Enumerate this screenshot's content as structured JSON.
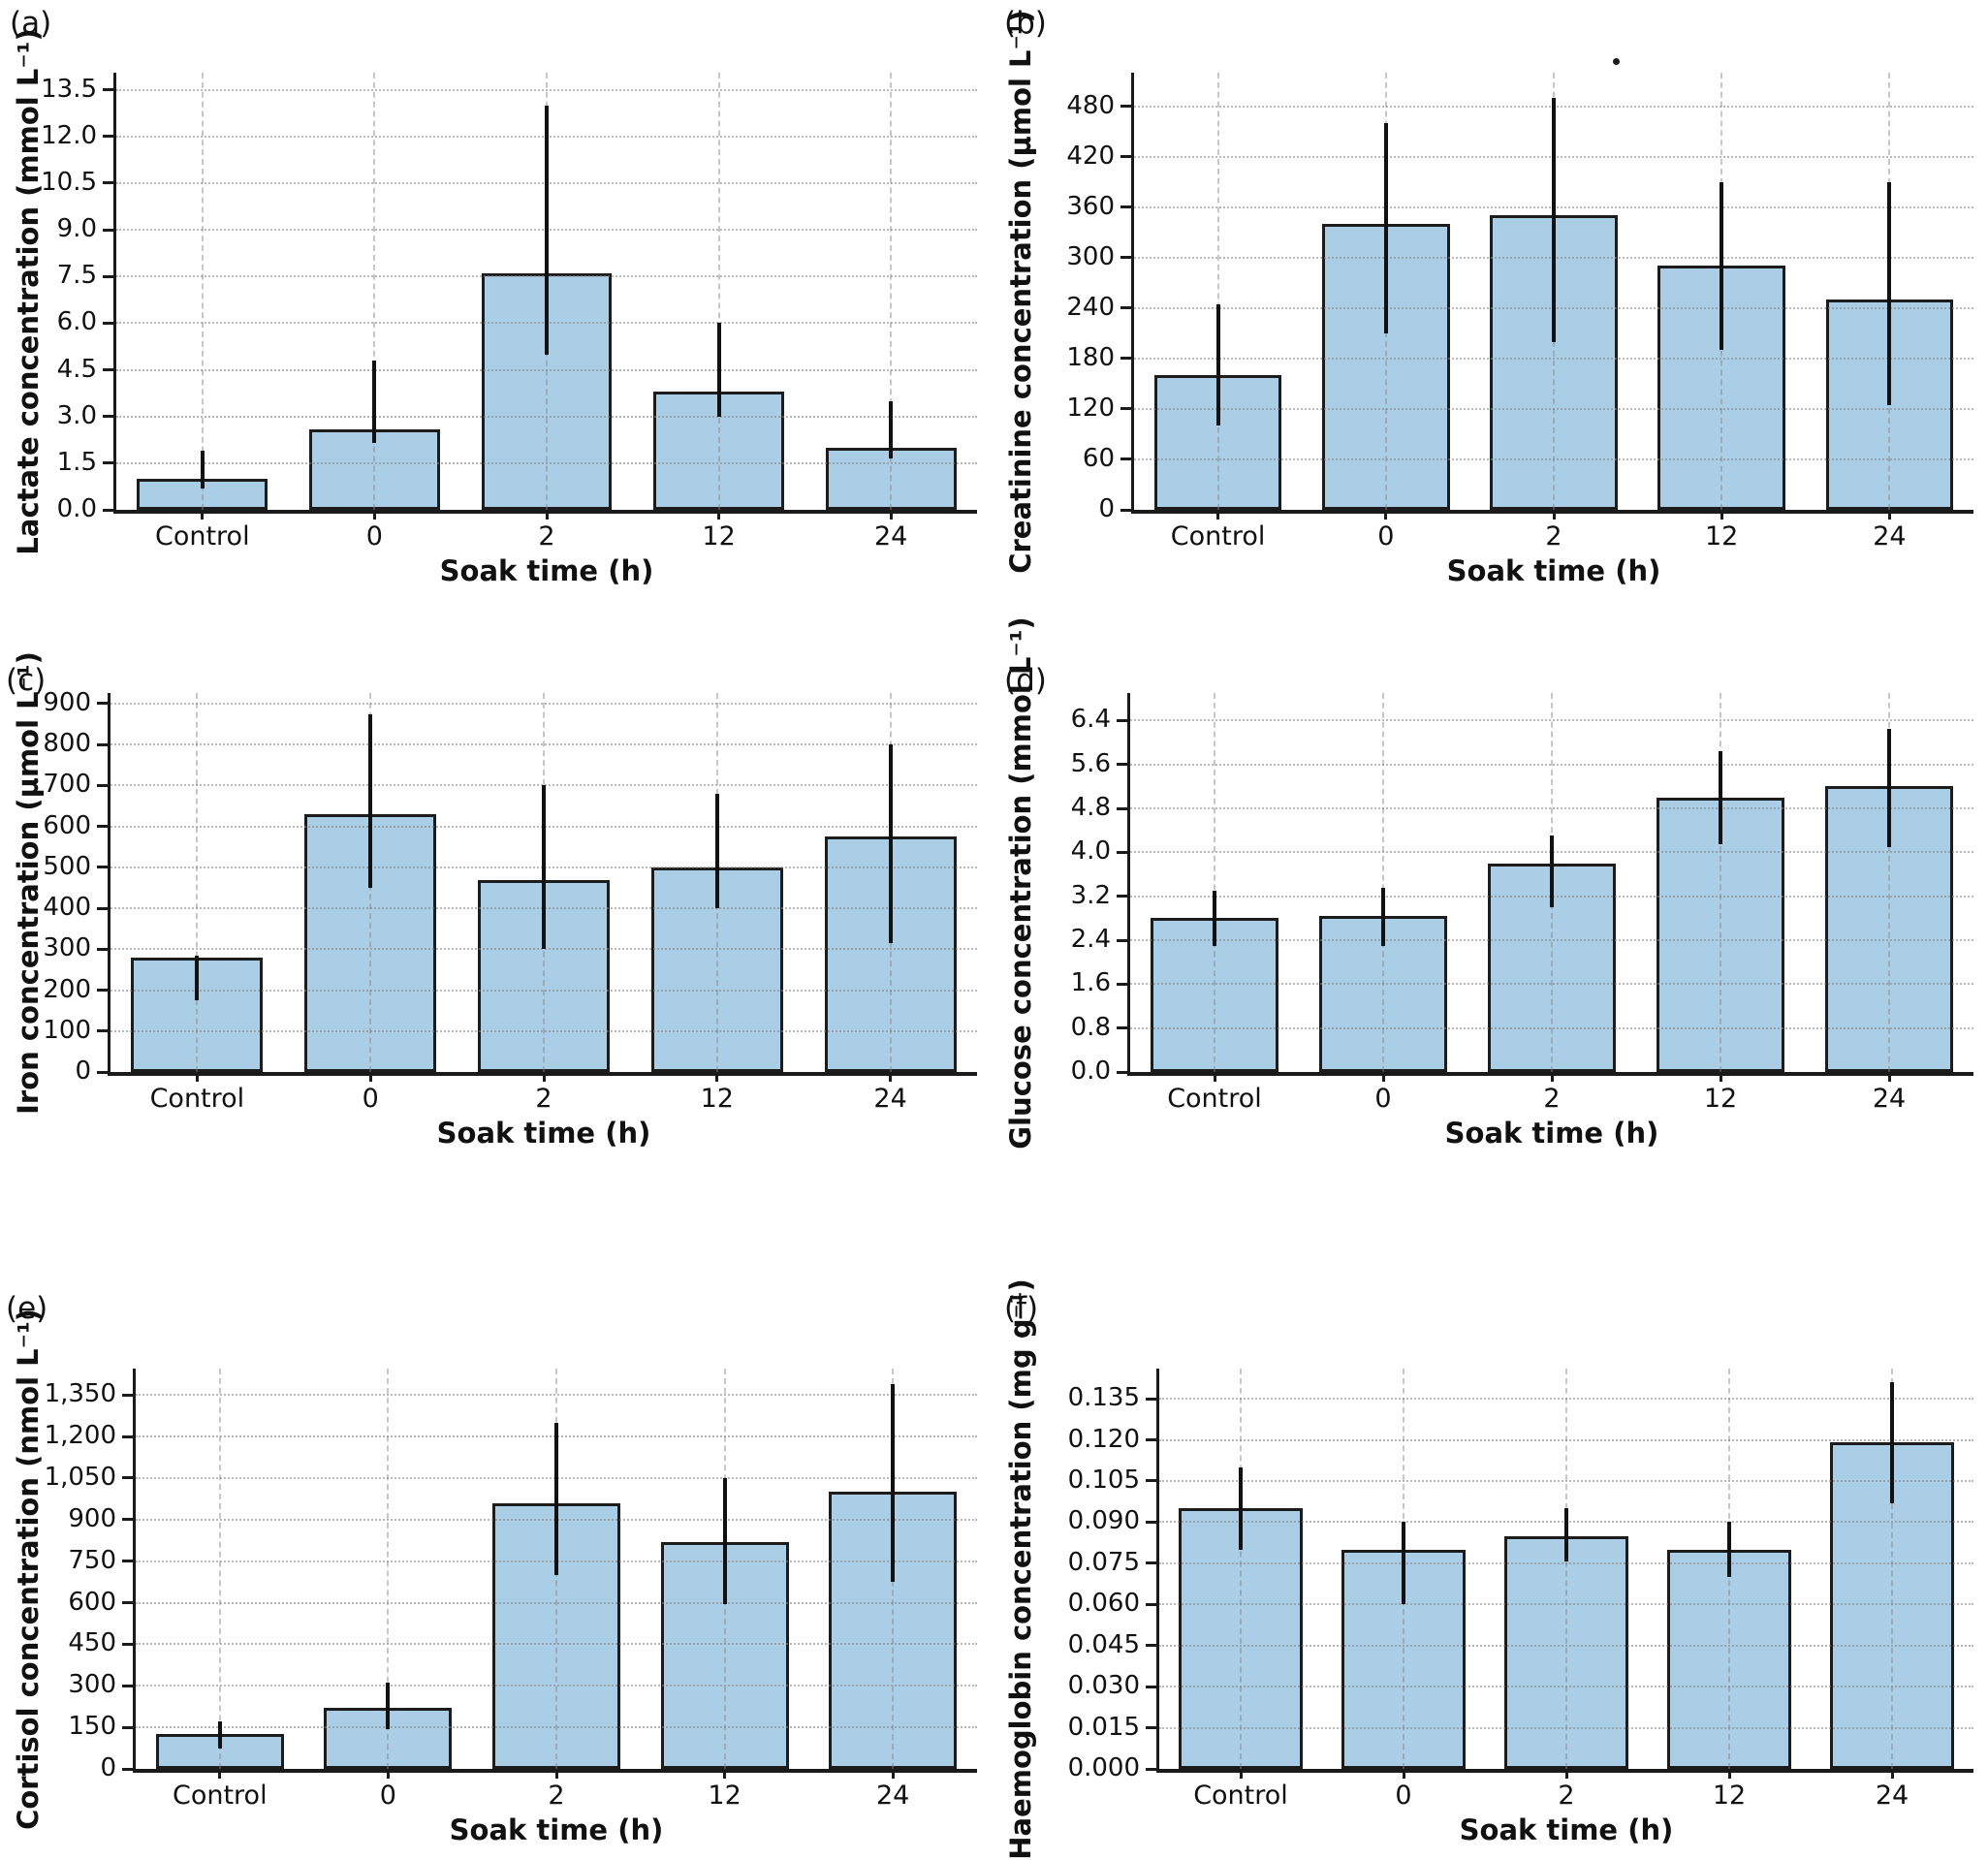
{
  "figure": {
    "background": "#ffffff",
    "bar_fill": "#a9cee5",
    "bar_edge": "#1c1c1c",
    "error_color": "#111111",
    "grid_color": "#c4c4c4",
    "axis_color": "#1a1a1a"
  },
  "chart_data": [
    {
      "type": "bar",
      "letter": "(a)",
      "ylabel": "Lactate concentration (mmol L⁻¹)",
      "xlabel": "Soak time (h)",
      "categories": [
        "Control",
        "0",
        "2",
        "12",
        "24"
      ],
      "values": [
        1.0,
        2.6,
        7.6,
        3.8,
        2.0
      ],
      "errors_low": [
        0.7,
        2.15,
        5.0,
        3.0,
        1.65
      ],
      "errors_high": [
        1.9,
        4.8,
        13.0,
        6.0,
        3.5
      ],
      "ylim": [
        0,
        14.05
      ],
      "ytick_values": [
        0,
        1.5,
        3.0,
        4.5,
        6.0,
        7.5,
        9.0,
        10.5,
        12.0,
        13.5
      ],
      "ytick_labels": [
        "0.0",
        "1.5",
        "3.0",
        "4.5",
        "6.0",
        "7.5",
        "9.0",
        "10.5",
        "12.0",
        "13.5"
      ],
      "grid": true,
      "legend": null
    },
    {
      "type": "bar",
      "letter": "(b)",
      "ylabel": "Creatinine concentration (µmol L⁻¹)",
      "xlabel": "Soak time (h)",
      "categories": [
        "Control",
        "0",
        "2",
        "12",
        "24"
      ],
      "values": [
        160,
        340,
        350,
        290,
        250
      ],
      "errors_low": [
        100,
        210,
        200,
        190,
        125
      ],
      "errors_high": [
        245,
        460,
        490,
        390,
        390
      ],
      "ylim": [
        0,
        520
      ],
      "ytick_values": [
        0,
        60,
        120,
        180,
        240,
        300,
        360,
        420,
        480
      ],
      "ytick_labels": [
        "0",
        "60",
        "120",
        "180",
        "240",
        "300",
        "360",
        "420",
        "480"
      ],
      "grid": true,
      "legend": null,
      "stray_dot": true
    },
    {
      "type": "bar",
      "letter": "(c)",
      "ylabel": "Iron concentration (µmol L⁻¹)",
      "xlabel": "Soak time (h)",
      "categories": [
        "Control",
        "0",
        "2",
        "12",
        "24"
      ],
      "values": [
        280,
        630,
        470,
        500,
        575
      ],
      "errors_low": [
        175,
        450,
        300,
        400,
        315
      ],
      "errors_high": [
        285,
        875,
        700,
        680,
        800
      ],
      "ylim": [
        0,
        926
      ],
      "ytick_values": [
        0,
        100,
        200,
        300,
        400,
        500,
        600,
        700,
        800,
        900
      ],
      "ytick_labels": [
        "0",
        "100",
        "200",
        "300",
        "400",
        "500",
        "600",
        "700",
        "800",
        "900"
      ],
      "grid": true,
      "legend": null
    },
    {
      "type": "bar",
      "letter": "(d)",
      "ylabel": "Glucose concentration (mmol L⁻¹)",
      "xlabel": "Soak time (h)",
      "categories": [
        "Control",
        "0",
        "2",
        "12",
        "24"
      ],
      "values": [
        2.8,
        2.85,
        3.8,
        5.0,
        5.2
      ],
      "errors_low": [
        2.3,
        2.3,
        3.0,
        4.15,
        4.1
      ],
      "errors_high": [
        3.3,
        3.35,
        4.3,
        5.85,
        6.25
      ],
      "ylim": [
        0,
        6.9
      ],
      "ytick_values": [
        0,
        0.8,
        1.6,
        2.4,
        3.2,
        4.0,
        4.8,
        5.6,
        6.4
      ],
      "ytick_labels": [
        "0.0",
        "0.8",
        "1.6",
        "2.4",
        "3.2",
        "4.0",
        "4.8",
        "5.6",
        "6.4"
      ],
      "grid": true,
      "legend": null
    },
    {
      "type": "bar",
      "letter": "(e)",
      "ylabel": "Cortisol concentration (nmol L⁻¹)",
      "xlabel": "Soak time (h)",
      "categories": [
        "Control",
        "0",
        "2",
        "12",
        "24"
      ],
      "values": [
        125,
        220,
        960,
        820,
        1000
      ],
      "errors_low": [
        75,
        145,
        700,
        595,
        675
      ],
      "errors_high": [
        170,
        310,
        1250,
        1050,
        1390
      ],
      "ylim": [
        0,
        1445
      ],
      "ytick_values": [
        0,
        150,
        300,
        450,
        600,
        750,
        900,
        1050,
        1200,
        1350
      ],
      "ytick_labels": [
        "0",
        "150",
        "300",
        "450",
        "600",
        "750",
        "900",
        "1,050",
        "1,200",
        "1,350"
      ],
      "grid": true,
      "legend": null
    },
    {
      "type": "bar",
      "letter": "(f)",
      "ylabel": "Haemoglobin concentration (mg g⁻¹)",
      "xlabel": "Soak time (h)",
      "categories": [
        "Control",
        "0",
        "2",
        "12",
        "24"
      ],
      "values": [
        0.095,
        0.08,
        0.085,
        0.08,
        0.119
      ],
      "errors_low": [
        0.08,
        0.06,
        0.0755,
        0.07,
        0.097
      ],
      "errors_high": [
        0.11,
        0.09,
        0.095,
        0.09,
        0.141
      ],
      "ylim": [
        0,
        0.146
      ],
      "ytick_values": [
        0,
        0.015,
        0.03,
        0.045,
        0.06,
        0.075,
        0.09,
        0.105,
        0.12,
        0.135
      ],
      "ytick_labels": [
        "0.000",
        "0.015",
        "0.030",
        "0.045",
        "0.060",
        "0.075",
        "0.090",
        "0.105",
        "0.120",
        "0.135"
      ],
      "grid": true,
      "legend": null
    }
  ]
}
